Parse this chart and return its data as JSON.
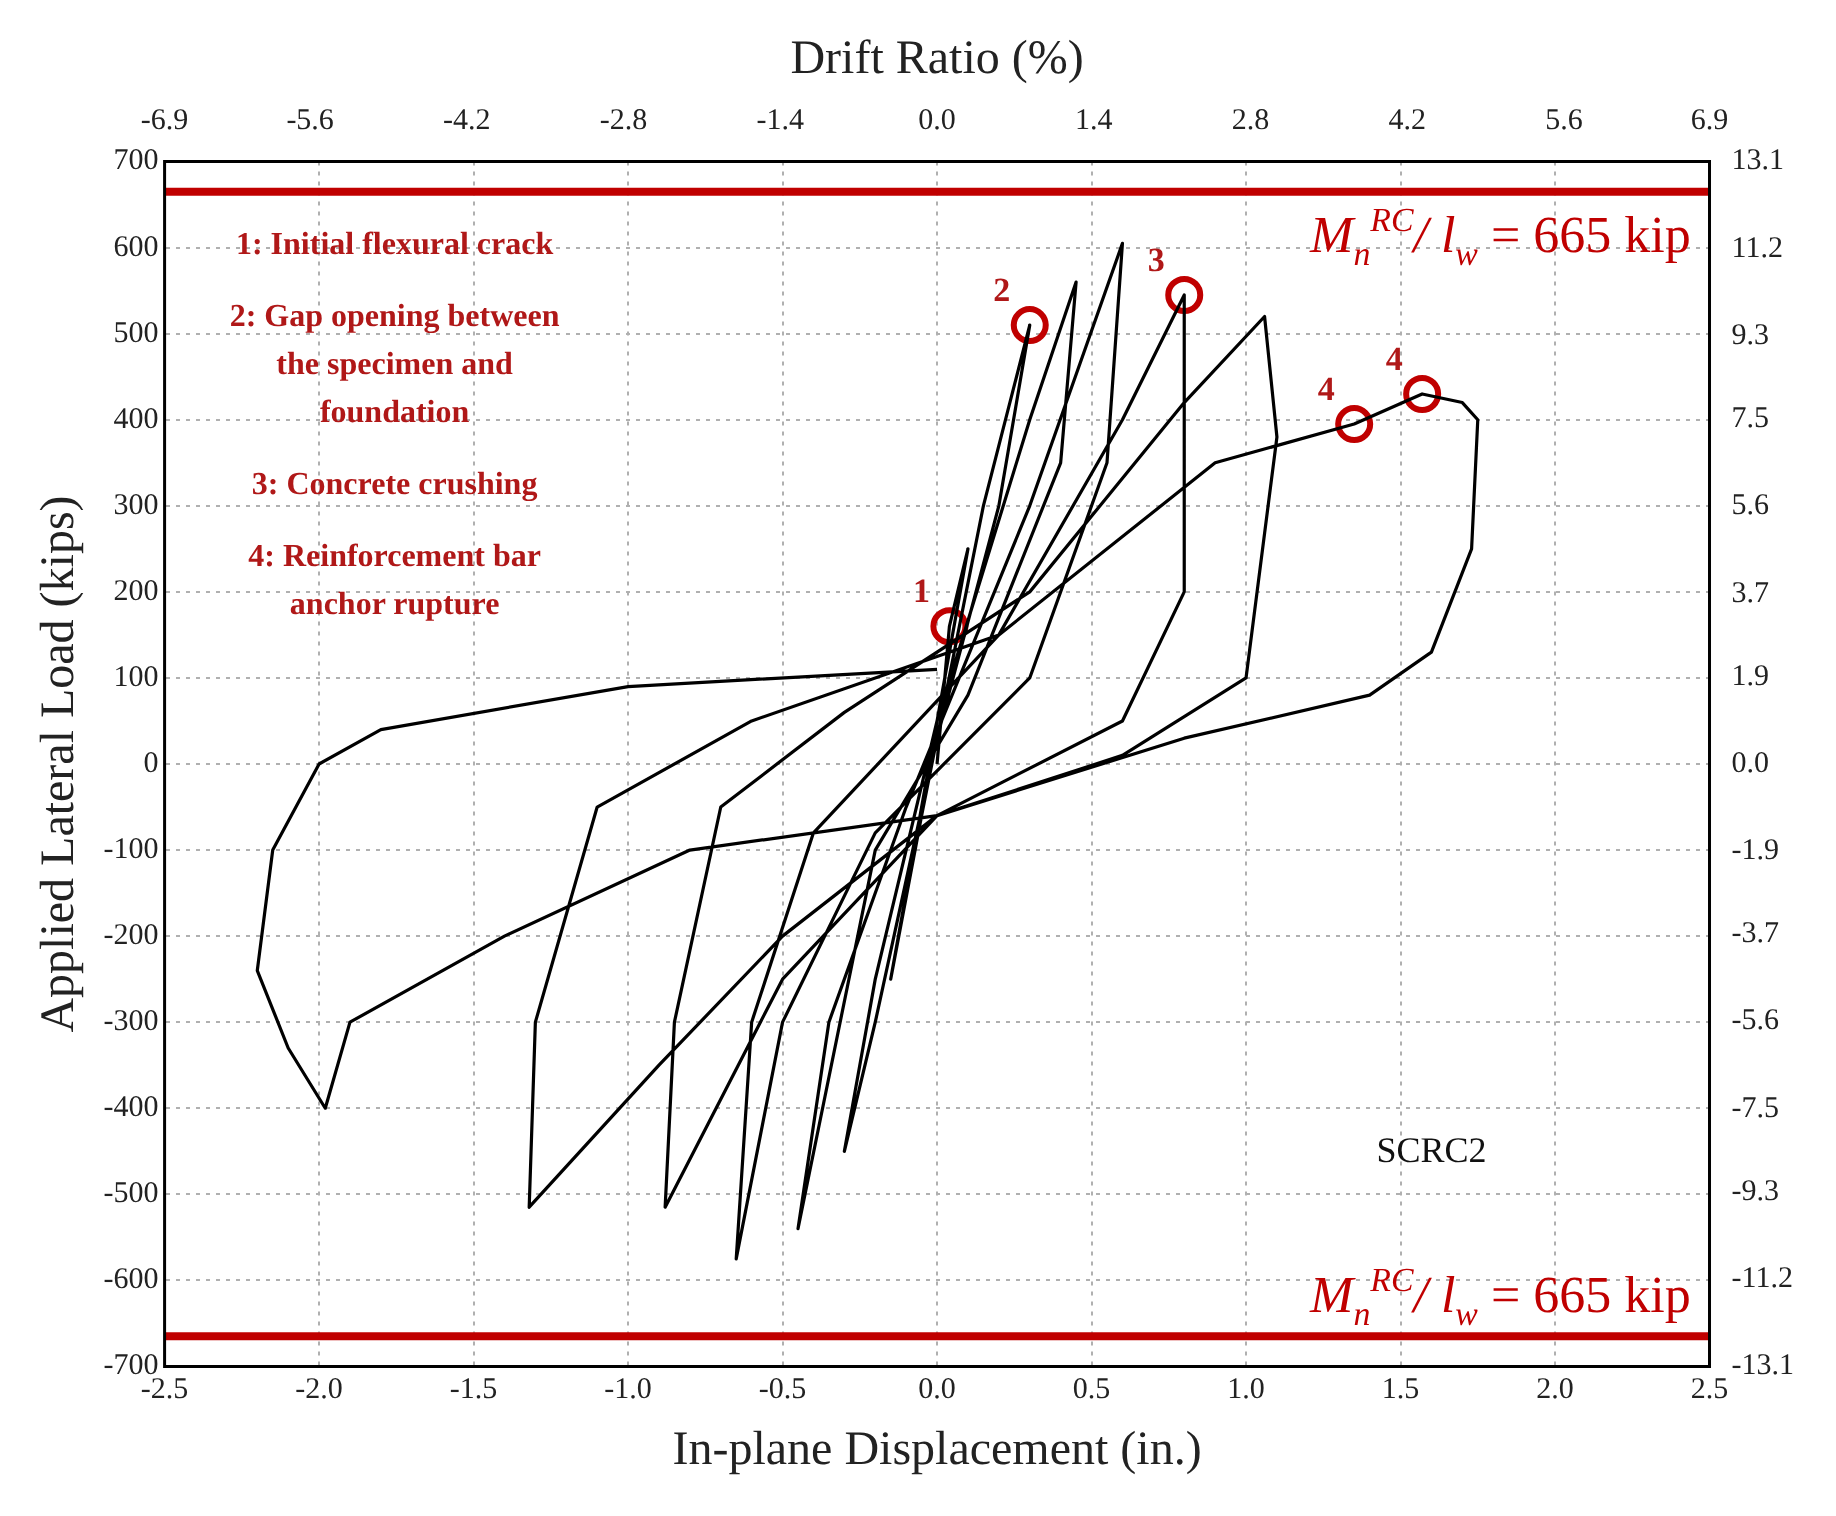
{
  "chart_data": {
    "type": "line",
    "x2label": "Drift Ratio (%)",
    "xlabel": "In-plane Displacement (in.)",
    "ylabel": "Applied Lateral Load (kips)",
    "xlim": [
      -2.5,
      2.5
    ],
    "xticks": [
      -2.5,
      {
        "value": -2,
        "label": "-2.0"
      },
      -1.5,
      {
        "value": -1,
        "label": "-1.0"
      },
      -0.5,
      {
        "value": 0,
        "label": "0.0"
      },
      0.5,
      {
        "value": 1,
        "label": "1.0"
      },
      1.5,
      {
        "value": 2,
        "label": "2.0"
      },
      2.5
    ],
    "ylim": [
      -700,
      700
    ],
    "yticks": [
      -700,
      -600,
      -500,
      -400,
      -300,
      -200,
      -100,
      0,
      100,
      200,
      300,
      400,
      500,
      600,
      700
    ],
    "x2lim": [
      -6.9,
      6.9
    ],
    "x2ticks": [
      -6.9,
      -5.6,
      -4.2,
      -2.8,
      -1.4,
      {
        "value": 0,
        "label": "0.0"
      },
      1.4,
      2.8,
      4.2,
      5.6,
      6.9
    ],
    "y2lim": [
      -13.1,
      13.1
    ],
    "y2ticks": [
      -13.1,
      -11.2,
      -9.3,
      -7.5,
      -5.6,
      -3.7,
      -1.9,
      {
        "value": 0,
        "label": "0.0"
      },
      1.9,
      3.7,
      5.6,
      7.5,
      9.3,
      11.2,
      13.1
    ],
    "grid": true,
    "legend": false,
    "marker": "none",
    "line_style": "solid",
    "series": [
      {
        "color": "#000000",
        "x": [
          0,
          0.04,
          0.1,
          0,
          -0.1,
          -0.15,
          -0.05,
          0.15,
          0.3,
          0.2,
          0,
          -0.2,
          -0.3,
          -0.2,
          0,
          0.3,
          0.45,
          0.4,
          0.1,
          -0.2,
          -0.45,
          -0.35,
          -0.1,
          0.3,
          0.6,
          0.55,
          0.3,
          -0.2,
          -0.5,
          -0.65,
          -0.6,
          -0.4,
          0.2,
          0.6,
          0.8,
          0.8,
          0.6,
          0,
          -0.5,
          -0.88,
          -0.85,
          -0.7,
          -0.3,
          0.3,
          0.8,
          1.06,
          1.1,
          1.0,
          0.6,
          0,
          -0.5,
          -0.9,
          -1.32,
          -1.3,
          -1.1,
          -0.6,
          0.2,
          0.9,
          1.35,
          1.57,
          1.7,
          1.75,
          1.73,
          1.6,
          1.4,
          0.8,
          0,
          -0.8,
          -1.4,
          -1.9,
          -1.98,
          -2.1,
          -2.2,
          -2.15,
          -2.0,
          -1.8,
          -1.0,
          0
        ],
        "values": [
          0,
          160,
          250,
          50,
          -150,
          -250,
          -60,
          300,
          510,
          300,
          30,
          -300,
          -450,
          -250,
          50,
          400,
          560,
          350,
          80,
          -100,
          -540,
          -300,
          -50,
          300,
          605,
          350,
          100,
          -80,
          -300,
          -575,
          -300,
          -80,
          150,
          400,
          545,
          200,
          50,
          -60,
          -250,
          -515,
          -300,
          -50,
          60,
          200,
          420,
          520,
          380,
          100,
          10,
          -60,
          -200,
          -350,
          -515,
          -300,
          -50,
          50,
          150,
          350,
          395,
          430,
          420,
          400,
          250,
          130,
          80,
          30,
          -60,
          -100,
          -200,
          -300,
          -400,
          -330,
          -240,
          -100,
          0,
          40,
          90,
          110
        ]
      },
      {
        "type": "scatter",
        "color": "#c00000",
        "marker": "circle",
        "x": [
          0.04,
          0.3,
          0.8,
          1.35,
          1.57
        ],
        "values": [
          160,
          510,
          545,
          395,
          430
        ]
      }
    ],
    "ref_lines": [
      {
        "axis": "y",
        "value": 665,
        "label": "M$_{n}$$^{RC}$/ l$_{w}$ = 665 kip",
        "color": "#c00000"
      },
      {
        "axis": "y",
        "value": -665,
        "color": "#c00000"
      }
    ],
    "annotations": [
      "1: Initial flexural crack",
      "2: Gap opening between the specimen and foundation",
      "3: Concrete crushing",
      "4: Reinforcement bar anchor rupture",
      "SCRC2",
      "M$_{n}$$^{RC}$/ l$_{w}$ = 665 kip",
      {
        "text": "1",
        "x": 0.04,
        "y": 160
      },
      {
        "text": "2",
        "x": 0.3,
        "y": 510
      },
      {
        "text": "3",
        "x": 0.8,
        "y": 545
      },
      {
        "text": "4",
        "x": 1.35,
        "y": 395
      },
      {
        "text": "4",
        "x": 1.57,
        "y": 430
      }
    ]
  }
}
